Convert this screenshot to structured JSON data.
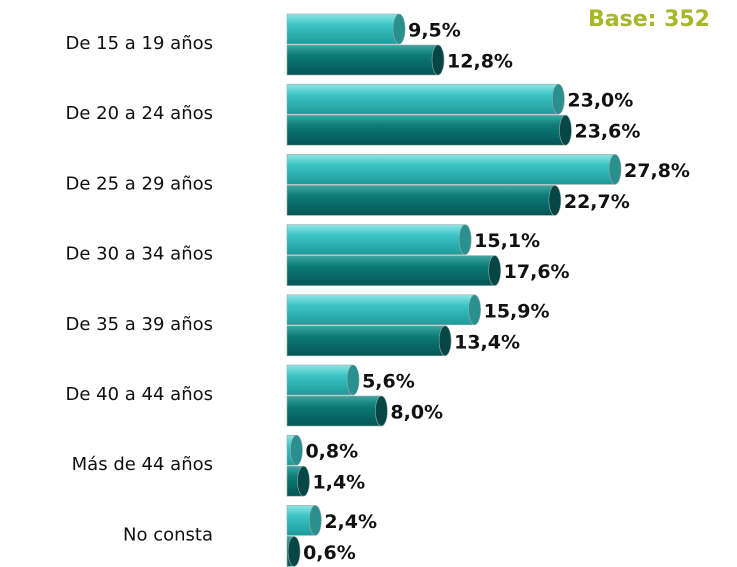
{
  "chart_data": {
    "type": "barh",
    "annotation": "Base: 352",
    "categories": [
      "De 15 a 19 años",
      "De 20 a 24 años",
      "De 25 a 29 años",
      "De 30 a 34 años",
      "De 35 a 39 años",
      "De 40 a 44 años",
      "Más de 44 años",
      "No consta"
    ],
    "series": [
      {
        "color": "#3cc4c4",
        "values": [
          9.5,
          23.0,
          27.8,
          15.1,
          15.9,
          5.6,
          0.8,
          2.4
        ],
        "value_labels": [
          "9,5%",
          "23,0%",
          "27,8%",
          "15,1%",
          "15,9%",
          "5,6%",
          "0,8%",
          "2,4%"
        ]
      },
      {
        "color": "#0c7b78",
        "values": [
          12.8,
          23.6,
          22.7,
          17.6,
          13.4,
          8.0,
          1.4,
          0.6
        ],
        "value_labels": [
          "12,8%",
          "23,6%",
          "22,7%",
          "17,6%",
          "13,4%",
          "8,0%",
          "1,4%",
          "0,6%"
        ]
      }
    ]
  }
}
